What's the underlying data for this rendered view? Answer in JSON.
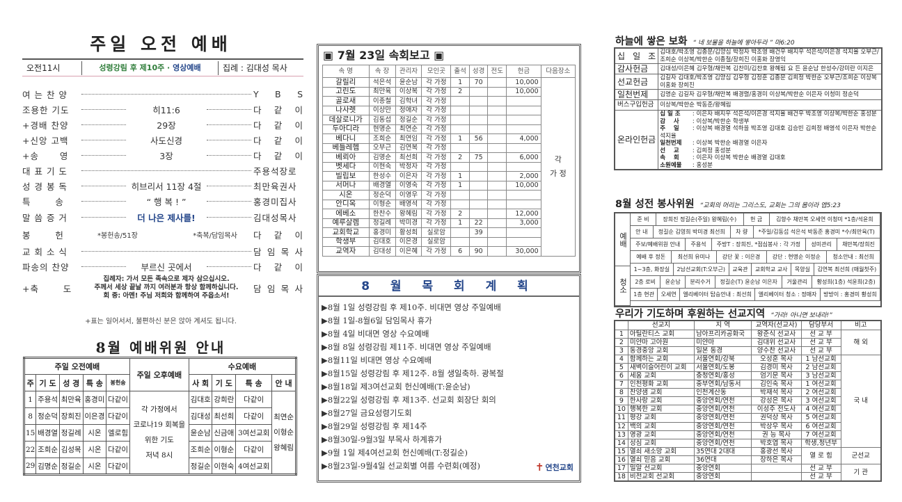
{
  "worship": {
    "title": "주일 오전 예배",
    "time": "오전11시",
    "week_green": "성령강림 후 제10주 ·",
    "week_blue": "영상예배",
    "presider": "집례 : 김대성 목사",
    "order": [
      {
        "label": "여 는 찬 양",
        "mid": "",
        "right": "Y B S"
      },
      {
        "label": "조용한 기도",
        "mid": "히11:6",
        "right": "다 같 이"
      },
      {
        "label": "+경배 찬양",
        "mid": "29장",
        "right": "다 같 이"
      },
      {
        "label": "+신앙 고백",
        "mid": "사도신경",
        "right": "다 같 이"
      },
      {
        "label": "+송      영",
        "mid": "3장",
        "right": "다 같 이"
      },
      {
        "label": "대 표 기 도",
        "mid": "",
        "right": "주용석장로"
      },
      {
        "label": "성 경 봉 독",
        "mid": "히브리서 11장 4절",
        "right": "최만육권사"
      },
      {
        "label": "특       송",
        "mid": "“ 행 복 ! ”",
        "right": "홍경미집사"
      },
      {
        "label": "말 씀 증 거",
        "mid": "더 나은 제사를!",
        "right": "김대성목사"
      },
      {
        "label": "봉       헌",
        "mid": "*봉헌송/51장",
        "mid2": "*축복/담임목사",
        "right": "다 같 이"
      },
      {
        "label": "교 회 소 식",
        "mid": "",
        "right": "담 임 목 사"
      },
      {
        "label": "파송의 찬양",
        "mid": "부르신 곳에서",
        "right": "다 같 이"
      },
      {
        "label": "+축       도",
        "mid": "",
        "right": "담 임 목 사"
      }
    ],
    "benediction": [
      "집례자: 가서 모든 족속으로 제자 삼으십시오.",
      "주께서 세상 끝날 까지 여러분과 항상 함께하십니다.",
      "회  중: 아멘! 주님 저희와 함께하여 주옵소서!"
    ],
    "note": "+표는 일어서서, 불편하신 분은 앉아 계셔도 됩니다."
  },
  "committee": {
    "title": "8월 예배위원 안내",
    "groups": [
      "주일 오전예배",
      "주일 오후예배",
      "수요예배"
    ],
    "am_cols": [
      "주",
      "기 도",
      "성 경",
      "특 송",
      "봉헌송"
    ],
    "wed_cols": [
      "사 회",
      "기 도",
      "특 송",
      "안 내"
    ],
    "pm_text": [
      "각 가정에서",
      "코로나19 회복을",
      "위한 기도",
      "저녁 8시"
    ],
    "rows": [
      {
        "w": "1",
        "a": [
          "주용석",
          "최만육",
          "홍경미",
          "다같이"
        ],
        "b": [
          "김대호",
          "강희란",
          "다같이"
        ]
      },
      {
        "w": "8",
        "a": [
          "정순덕",
          "장희진",
          "이은경",
          "다같이"
        ],
        "b": [
          "김대성",
          "최선희",
          "다같이"
        ]
      },
      {
        "w": "15",
        "a": [
          "배경열",
          "정길례",
          "시온",
          "엘로힘"
        ],
        "b": [
          "윤순남",
          "신금애",
          "3여선교회"
        ]
      },
      {
        "w": "22",
        "a": [
          "조희순",
          "김성목",
          "시온",
          "다같이"
        ],
        "b": [
          "조희순",
          "이형순",
          "다같이"
        ]
      },
      {
        "w": "29",
        "a": [
          "김명순",
          "정길순",
          "시온",
          "다같이"
        ],
        "b": [
          "정길순",
          "이현숙",
          "4여선교회"
        ]
      }
    ],
    "ushers": [
      "최연순",
      "이형순",
      "왕혜림"
    ]
  },
  "report": {
    "title": "▣ 7월 23일 속회보고 ▣",
    "cols": [
      "속 명",
      "속 장",
      "관리자",
      "모인곳",
      "출석",
      "성경",
      "전도",
      "헌금",
      "다음장소"
    ],
    "next_place": "각\n가 정",
    "rows": [
      [
        "갈릴리",
        "석은석",
        "윤순남",
        "각 가정",
        "1",
        "70",
        "",
        "10,000"
      ],
      [
        "고린도",
        "최만육",
        "이상복",
        "각 가정",
        "2",
        "",
        "",
        "10,000"
      ],
      [
        "골로새",
        "이종철",
        "김학녀",
        "각 가정",
        "",
        "",
        "",
        ""
      ],
      [
        "나사렛",
        "이상만",
        "정애자",
        "각 가정",
        "",
        "",
        "",
        ""
      ],
      [
        "데살로니가",
        "김동섭",
        "정길순",
        "각 가정",
        "",
        "",
        "",
        ""
      ],
      [
        "두아디라",
        "현명순",
        "최연순",
        "각 가정",
        "",
        "",
        "",
        ""
      ],
      [
        "베다니",
        "조희순",
        "최연임",
        "각 가정",
        "1",
        "56",
        "",
        "4,000"
      ],
      [
        "베들레헴",
        "오부근",
        "김연복",
        "각 가정",
        "",
        "",
        "",
        ""
      ],
      [
        "베뢰아",
        "김명순",
        "최선희",
        "각 가정",
        "2",
        "75",
        "",
        "6,000"
      ],
      [
        "벳세다",
        "이현숙",
        "박정자",
        "각 가정",
        "",
        "",
        "",
        ""
      ],
      [
        "빌립보",
        "한성수",
        "이은자",
        "각 가정",
        "1",
        "",
        "",
        "2,000"
      ],
      [
        "서머나",
        "배경열",
        "이영숙",
        "각 가정",
        "1",
        "",
        "",
        "10,000"
      ],
      [
        "시온",
        "정순덕",
        "이영우",
        "각 가정",
        "",
        "",
        "",
        ""
      ],
      [
        "안디옥",
        "이형순",
        "배영석",
        "각 가정",
        "",
        "",
        "",
        ""
      ],
      [
        "에베소",
        "한찬수",
        "왕혜림",
        "각 가정",
        "2",
        "",
        "",
        "12,000"
      ],
      [
        "예루살렘",
        "정길례",
        "박미경",
        "각 가정",
        "1",
        "22",
        "",
        "3,000"
      ],
      [
        "교회학교",
        "홍경미",
        "황성희",
        "실로암",
        "",
        "39",
        "",
        ""
      ],
      [
        "학생부",
        "김대호",
        "이은경",
        "실로암",
        "",
        "",
        "",
        ""
      ],
      [
        "교역자",
        "김대성",
        "이은혜",
        "각 가정",
        "6",
        "90",
        "",
        "30,000"
      ]
    ]
  },
  "plan": {
    "title": "8 월  목 회 계 획",
    "items": [
      "▶8월 1일 성령강림 후 제10주. 비대면 영상 주일예배",
      "▶8월 1일-8월6일 담임목사 휴가",
      "▶8월 4일 비대면 영상 수요예배",
      "▶8월 8일 성령강림 제11주. 비대면 영상 주일예배",
      "▶8월11일 비대면 영상 수요예배",
      "▶8월15일 성령강림 후 제12주. 8월 생일축하. 광복절",
      "▶8월18일 제3여선교회 헌신예배(T:윤순남)",
      "▶8월22일 성령강림 후 제13주. 선교회 회장단 회의",
      "▶8월27일 금요성령기도회",
      "▶8월29일 성령강림 후 제14주",
      "▶8월30일-9월3일 부목사 하계휴가",
      "▶9월 1일 제4여선교회 헌신예배(T:정길순)",
      "▶8월23일-9월4일 선교회별 여름 수련회(예정)"
    ],
    "logo": "연천교회"
  },
  "offering": {
    "title": "하늘에 쌓은 보화",
    "verse": "“ 네 보물을 하늘에 쌓아두라 ” 마6:20",
    "rows": [
      {
        "k": "십 일 조",
        "v": "김대호/박조영 김종문/김양심 박정자 박조영 배건우 배지우 석은석/이은경 석지율 오부근/조희순 이상복/박한순 이종철/장희진 이홍화 장영익"
      },
      {
        "k": "감사헌금",
        "v": "김대성/이은혜 김우형/채만복 김찬미/김찬호 왕혜림 요 든 윤순남 한성수/강미란 이지은"
      },
      {
        "k": "선교헌금",
        "v": "김길자 김대호/박조영 김양심 김우형 김정훈 김종문 김희정 박한순 오부근/조희순 이상복 이홍화 장희진"
      },
      {
        "k": "일천번제",
        "v": "김명순 김길자 김우형/채만복 배경렬/홍경미 이상복/박한순 이은자 이청미 정순덕"
      },
      {
        "k": "버스구입헌금",
        "v": "이상복/박한순 박동준/왕혜림"
      },
      {
        "k": "온라인헌금",
        "lines": [
          {
            "t": "십 일 조",
            "v": "이은자 배지우 석은석/이은경 석지율 배건우 박조영 이상복/박한순 홍성분"
          },
          {
            "t": "감    사",
            "v": "이상복/박한순 학생부"
          },
          {
            "t": "주    일",
            "v": "이상복 배경열 석하을 박조영 김대호 김승빈 김희정 배영석 이은자 박한순 석지율"
          },
          {
            "t": "일천번제",
            "v": "이상복 박한순 배경열 이은자"
          },
          {
            "t": "선    교",
            "v": "김희정 홍성분"
          },
          {
            "t": "속    회",
            "v": "이은자 이상복 박한순 배경열 김대호"
          },
          {
            "t": "소원예물",
            "v": "홍성분"
          }
        ]
      }
    ]
  },
  "service": {
    "title": "8월 성전 봉사위원",
    "verse": "“교회의 머리는 그리스도, 교회는 그의 몸이라 엡5:23",
    "side": [
      "예배",
      "청소"
    ],
    "rows": [
      [
        "준 비",
        "장희진  정길순(주일)  왕혜림(수)",
        "헌 금",
        "김향수 채만복 오세연 이청미  *1층/석윤희"
      ],
      [
        "안 내",
        "정길순 김영희 박미경 최선희",
        "차 량",
        "*주일/김동섭 석은석 박동준 홍경미 *수/최만육(T)"
      ],
      [
        "주보/예배위원 안내",
        "주용석",
        "주방T : 장희진, *점심봉사 : 각 가정",
        "성미관리",
        "채만복/장희진"
      ],
      [
        "예배 후 정돈",
        "최선희 유미나",
        "강단 꽃 : 이은경",
        "강단 : 현명순 이정순",
        "청소안내 : 최선희"
      ],
      [
        "1~3층, 화장실",
        "2남선교회(T:오부근)",
        "교육관",
        "교회학교 교사",
        "목양실",
        "김연복 최선희 (매월첫주)"
      ],
      [
        "2층 로비",
        "윤순남",
        "분리수거",
        "정길순(T) 윤순남 이은자",
        "거울관리",
        "황성희(1층) 석윤희(2층)"
      ],
      [
        "1층 현관",
        "오세연",
        "엘리베이터 탑승안내 : 최선희",
        "엘리베이터 청소 : 정매자",
        "방방이 : 홍경미 황성희"
      ]
    ]
  },
  "mission": {
    "title": "우리가 기도하며 후원하는 선교지역",
    "verse": "“가라! 아니면 보내라!”",
    "cols": [
      "",
      "선교지",
      "지 역",
      "교역자(선교사)",
      "담당부서",
      "비고"
    ],
    "rows": [
      [
        "1",
        "아틸란티스 교회",
        "남아프리카공화국",
        "왕준식 선교사",
        "선 교 부"
      ],
      [
        "2",
        "미얀마 고아원",
        "미얀마",
        "김대위 선교사",
        "선 교 부"
      ],
      [
        "3",
        "동경중앙 교회",
        "일본 동경",
        "양수찬 선교사",
        "선 교 부"
      ],
      [
        "4",
        "함께하는 교회",
        "서울연회/강북",
        "오성훈  목사",
        "1 남선교회"
      ],
      [
        "5",
        "새벽이슬어린이 교회",
        "서울연회/도봉",
        "김경미  목사",
        "2 남선교회"
      ],
      [
        "6",
        "세움 교회",
        "충청연회/홍성",
        "엄기문  목사",
        "3 남선교회"
      ],
      [
        "7",
        "인천평화 교회",
        "중부연회/남동서",
        "김인숙  목사",
        "1 여선교회"
      ],
      [
        "8",
        "찬양샘 교회",
        "인천계산동",
        "박재석  목사",
        "2 여선교회"
      ],
      [
        "9",
        "한사랑 교회",
        "중앙연회/연천",
        "강성은  목사",
        "3 여선교회"
      ],
      [
        "10",
        "행복한 교회",
        "중앙연회/연천",
        "이성주 전도사",
        "4 여선교회"
      ],
      [
        "11",
        "평강 교회",
        "중앙연회/연천",
        "권덕상  목사",
        "5 여선교회"
      ],
      [
        "12",
        "백의 교회",
        "중앙연회/연천",
        "박상우  목사",
        "6 여선교회"
      ],
      [
        "13",
        "영광 교회",
        "중앙연회/연천",
        "권  능  목사",
        "7 여선교회"
      ],
      [
        "14",
        "성심 교회",
        "중앙연회/연천",
        "박호엽  목사",
        "학생,청년부"
      ],
      [
        "15",
        "열쇠 새소망 교회",
        "35연대 2대대",
        "홍광선  목사",
        "열 로 힘"
      ],
      [
        "16",
        "열쇠 믿음 교회",
        "36연대",
        "장하은  목사",
        ""
      ],
      [
        "17",
        "밀알 선교회",
        "중앙연회",
        "",
        "선 교 부"
      ],
      [
        "18",
        "비전교회 선교회",
        "중앙연회",
        "",
        "선 교 부"
      ]
    ],
    "notes": [
      "해 외",
      "국 내",
      "군선교",
      "기 관"
    ]
  }
}
